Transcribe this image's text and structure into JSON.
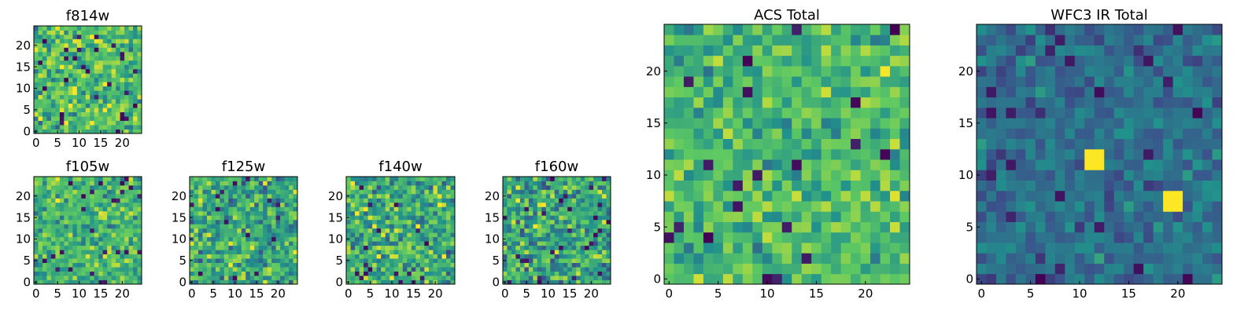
{
  "figure": {
    "colormap": [
      "#440154",
      "#3b528b",
      "#21918c",
      "#5ec962",
      "#fde725"
    ],
    "frame_color": "#000000",
    "background": "#ffffff"
  },
  "chart_data": [
    {
      "type": "heatmap",
      "title": "f814w",
      "size": 25,
      "xticks": [
        0,
        5,
        10,
        15,
        20
      ],
      "yticks": [
        0,
        5,
        10,
        15,
        20
      ],
      "value_range": [
        0,
        1
      ],
      "mean": 0.68,
      "spread": 0.18,
      "seed": 11,
      "hot_spots": []
    },
    {
      "type": "heatmap",
      "title": "f105w",
      "size": 25,
      "xticks": [
        0,
        5,
        10,
        15,
        20
      ],
      "yticks": [
        0,
        5,
        10,
        15,
        20
      ],
      "value_range": [
        0,
        1
      ],
      "mean": 0.66,
      "spread": 0.16,
      "seed": 23,
      "hot_spots": []
    },
    {
      "type": "heatmap",
      "title": "f125w",
      "size": 25,
      "xticks": [
        0,
        5,
        10,
        15,
        20
      ],
      "yticks": [
        0,
        5,
        10,
        15,
        20
      ],
      "value_range": [
        0,
        1
      ],
      "mean": 0.62,
      "spread": 0.2,
      "seed": 37,
      "hot_spots": []
    },
    {
      "type": "heatmap",
      "title": "f140w",
      "size": 25,
      "xticks": [
        0,
        5,
        10,
        15,
        20
      ],
      "yticks": [
        0,
        5,
        10,
        15,
        20
      ],
      "value_range": [
        0,
        1
      ],
      "mean": 0.62,
      "spread": 0.2,
      "seed": 51,
      "hot_spots": []
    },
    {
      "type": "heatmap",
      "title": "f160w",
      "size": 25,
      "xticks": [
        0,
        5,
        10,
        15,
        20
      ],
      "yticks": [
        0,
        5,
        10,
        15,
        20
      ],
      "value_range": [
        0,
        1
      ],
      "mean": 0.6,
      "spread": 0.2,
      "seed": 67,
      "hot_spots": []
    },
    {
      "type": "heatmap",
      "title": "ACS Total",
      "size": 25,
      "xticks": [
        0,
        5,
        10,
        15,
        20
      ],
      "yticks": [
        0,
        5,
        10,
        15,
        20
      ],
      "value_range": [
        0,
        1
      ],
      "mean": 0.68,
      "spread": 0.15,
      "seed": 83,
      "hot_spots": []
    },
    {
      "type": "heatmap",
      "title": "WFC3 IR Total",
      "size": 25,
      "xticks": [
        0,
        5,
        10,
        15,
        20
      ],
      "yticks": [
        0,
        5,
        10,
        15,
        20
      ],
      "value_range": [
        0,
        1
      ],
      "mean": 0.36,
      "spread": 0.1,
      "seed": 97,
      "hot_spots": [
        {
          "col": 11,
          "row": 11,
          "w": 2,
          "h": 2,
          "value": 1.0
        },
        {
          "col": 19,
          "row": 7,
          "w": 2,
          "h": 2,
          "value": 1.0
        }
      ]
    }
  ]
}
